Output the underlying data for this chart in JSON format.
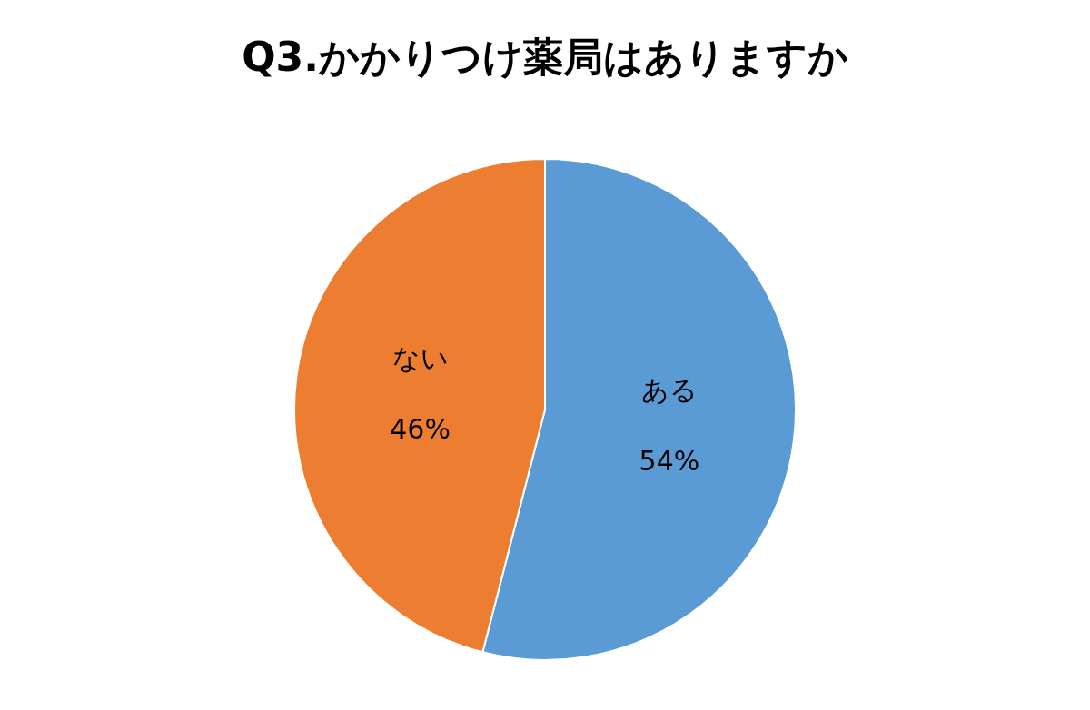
{
  "chart_data": {
    "type": "pie",
    "title": "Q3.かかりつけ薬局はありますか",
    "categories": [
      "ある",
      "ない"
    ],
    "values": [
      54,
      46
    ],
    "value_labels": [
      "54%",
      "46%"
    ],
    "colors": [
      "#5b9bd5",
      "#ed7d31"
    ],
    "legend": false
  }
}
